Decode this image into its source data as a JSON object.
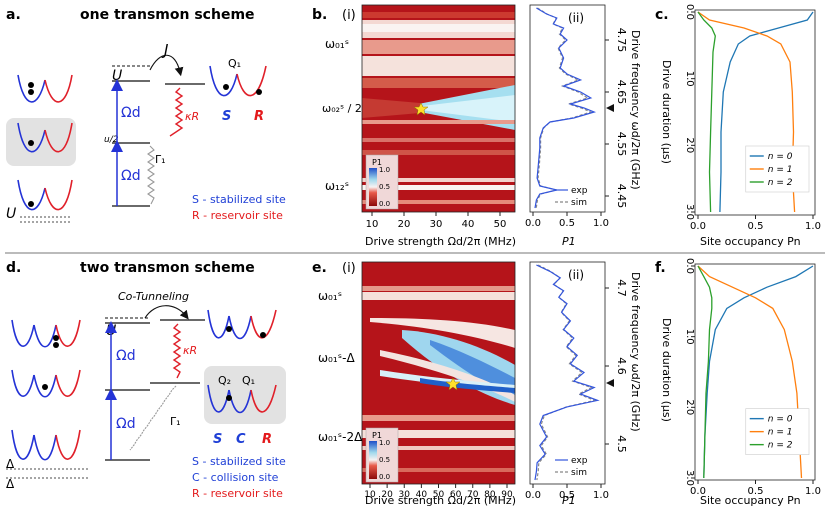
{
  "panel_letters": {
    "a": "a.",
    "b": "b.",
    "c": "c.",
    "d": "d.",
    "e": "e.",
    "f": "f."
  },
  "sub_labels": {
    "i": "(i)",
    "ii": "(ii)"
  },
  "schemes": {
    "one": "one transmon scheme",
    "two": "two transmon scheme"
  },
  "scheme_a": {
    "U": "U",
    "J": "J",
    "Q1": "Q₁",
    "kappa": "κR",
    "u2": "u/2",
    "gamma": "Γ₁",
    "omega": "Ωd",
    "S": "S",
    "R": "R",
    "Ubottom": "U",
    "legend_s": "S - stabilized site",
    "legend_r": "R - reservoir site"
  },
  "scheme_d": {
    "cotunnel": "Co-Tunneling",
    "U": "U",
    "kappa": "κR",
    "gamma": "Γ₁",
    "omega": "Ωd",
    "Q2": "Q₂",
    "Q1": "Q₁",
    "S": "S",
    "C": "C",
    "R": "R",
    "delta": "Δ",
    "legend_s": "S - stabilized site",
    "legend_c": "C - collision site",
    "legend_r": "R - reservoir site"
  },
  "panel_b": {
    "xlabel": "Drive strength Ωd/2π (MHz)",
    "xticks": [
      "10",
      "20",
      "30",
      "40",
      "50"
    ],
    "ylabels": [
      "ω₀₁ˢ",
      "ω₀₂ˢ / 2",
      "ω₁₂ˢ"
    ],
    "colorbar_title": "P1",
    "colorbar_ticks": [
      "1.0",
      "0.5",
      "0.0"
    ]
  },
  "panel_b2": {
    "xlabel": "P1",
    "xticks": [
      "0.0",
      "0.5",
      "1.0"
    ],
    "yticks": [
      "4.75",
      "4.65",
      "4.55",
      "4.45"
    ],
    "ylabel": "Drive frequency ωd/2π (GHz)",
    "legend_exp": "exp",
    "legend_sim": "sim"
  },
  "panel_c": {
    "xlabel": "Site occupancy Pn",
    "xticks": [
      "0.0",
      "0.5",
      "1.0"
    ],
    "yticks": [
      "0.0",
      "1.0",
      "2.0",
      "3.0"
    ],
    "ylabel": "Drive duration (μs)",
    "legend": [
      "n = 0",
      "n = 1",
      "n = 2"
    ]
  },
  "panel_e": {
    "xlabel": "Drive strength Ωd/2π (MHz)",
    "xticks": [
      "10",
      "20",
      "30",
      "40",
      "50",
      "60",
      "70",
      "80",
      "90"
    ],
    "ylabels": [
      "ω₀₁ˢ",
      "ω₀₁ˢ-Δ",
      "ω₀₁ˢ-2Δ"
    ],
    "colorbar_title": "P1",
    "colorbar_ticks": [
      "1.0",
      "0.5",
      "0.0"
    ]
  },
  "panel_e2": {
    "xlabel": "P1",
    "xticks": [
      "0.0",
      "0.5",
      "1.0"
    ],
    "yticks": [
      "4.7",
      "4.6",
      "4.5"
    ],
    "ylabel": "Drive frequency ωd/2π (GHz)",
    "legend_exp": "exp",
    "legend_sim": "sim"
  },
  "panel_f": {
    "xlabel": "Site occupancy Pn",
    "xticks": [
      "0.0",
      "0.5",
      "1.0"
    ],
    "yticks": [
      "0.0",
      "1.0",
      "2.0",
      "3.0"
    ],
    "ylabel": "Drive duration (μs)",
    "legend": [
      "n = 0",
      "n = 1",
      "n = 2"
    ]
  },
  "colors": {
    "blue": "#1f77b4",
    "orange": "#ff7f0e",
    "green": "#2ca02c",
    "red_text": "#e31a1c",
    "blue_text": "#1f3fd6",
    "wave_blue": "#2433d6",
    "wave_red": "#e0202a"
  }
}
